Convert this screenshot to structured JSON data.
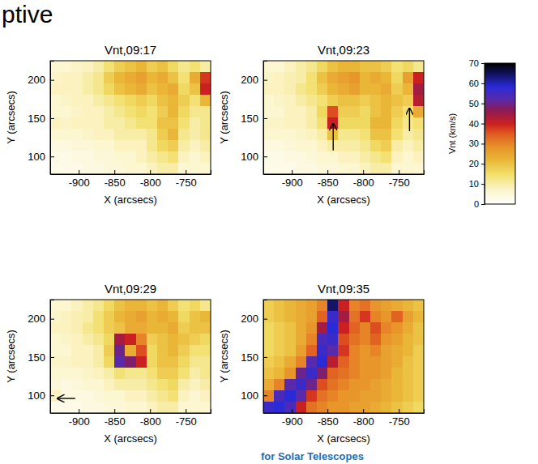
{
  "header": "ptive",
  "footer": "for Solar Telescopes",
  "colorbar": {
    "label": "Vnt (km/s)",
    "range": [
      0,
      70
    ],
    "ticks": [
      0,
      10,
      20,
      30,
      40,
      50,
      60,
      70
    ]
  },
  "chart_data": [
    {
      "type": "heatmap",
      "title": "Vnt,09:17",
      "x_label": "X (arcsecs)",
      "y_label": "Y (arcsecs)",
      "xlim": [
        -940,
        -715
      ],
      "ylim": [
        77,
        225
      ],
      "xticks": [
        -900,
        -850,
        -800,
        -750
      ],
      "yticks": [
        100,
        150,
        200
      ],
      "cells": [
        [
          6,
          6,
          7,
          8,
          10,
          14,
          18,
          20,
          22,
          18,
          20,
          16,
          12,
          14,
          10
        ],
        [
          7,
          8,
          8,
          10,
          12,
          18,
          22,
          24,
          26,
          22,
          24,
          20,
          14,
          24,
          38
        ],
        [
          8,
          8,
          8,
          10,
          12,
          16,
          20,
          22,
          24,
          20,
          22,
          24,
          16,
          20,
          40
        ],
        [
          6,
          7,
          8,
          8,
          10,
          12,
          14,
          16,
          18,
          16,
          20,
          22,
          18,
          14,
          22
        ],
        [
          6,
          6,
          7,
          8,
          8,
          10,
          12,
          14,
          16,
          14,
          18,
          22,
          16,
          12,
          12
        ],
        [
          8,
          7,
          8,
          8,
          8,
          10,
          10,
          12,
          14,
          14,
          20,
          20,
          14,
          10,
          12
        ],
        [
          6,
          6,
          6,
          7,
          8,
          8,
          10,
          10,
          10,
          12,
          18,
          22,
          12,
          10,
          12
        ],
        [
          4,
          4,
          5,
          5,
          6,
          6,
          8,
          8,
          8,
          12,
          16,
          18,
          10,
          8,
          10
        ],
        [
          3,
          3,
          4,
          4,
          5,
          5,
          6,
          6,
          8,
          10,
          12,
          14,
          8,
          6,
          8
        ],
        [
          3,
          3,
          3,
          4,
          4,
          5,
          5,
          6,
          6,
          8,
          10,
          10,
          6,
          6,
          6
        ]
      ]
    },
    {
      "type": "heatmap",
      "title": "Vnt,09:23",
      "x_label": "X (arcsecs)",
      "y_label": "Y (arcsecs)",
      "xlim": [
        -940,
        -715
      ],
      "ylim": [
        77,
        225
      ],
      "xticks": [
        -900,
        -850,
        -800,
        -750
      ],
      "yticks": [
        100,
        150,
        200
      ],
      "cells": [
        [
          6,
          6,
          8,
          10,
          12,
          16,
          20,
          22,
          22,
          20,
          20,
          18,
          14,
          16,
          12
        ],
        [
          7,
          8,
          9,
          10,
          14,
          20,
          24,
          26,
          28,
          22,
          24,
          22,
          16,
          26,
          40
        ],
        [
          8,
          8,
          9,
          12,
          14,
          18,
          22,
          24,
          26,
          22,
          22,
          24,
          18,
          22,
          44
        ],
        [
          6,
          7,
          8,
          10,
          12,
          14,
          18,
          20,
          20,
          18,
          20,
          22,
          20,
          18,
          42
        ],
        [
          6,
          6,
          8,
          8,
          10,
          16,
          36,
          18,
          18,
          16,
          20,
          22,
          18,
          14,
          24
        ],
        [
          7,
          7,
          8,
          8,
          10,
          14,
          40,
          16,
          16,
          16,
          22,
          22,
          16,
          12,
          14
        ],
        [
          6,
          6,
          6,
          7,
          8,
          10,
          20,
          12,
          12,
          14,
          20,
          20,
          14,
          10,
          12
        ],
        [
          4,
          4,
          5,
          6,
          6,
          8,
          10,
          10,
          10,
          12,
          16,
          18,
          10,
          8,
          10
        ],
        [
          3,
          3,
          4,
          4,
          5,
          6,
          6,
          8,
          8,
          10,
          12,
          14,
          8,
          6,
          8
        ],
        [
          3,
          3,
          3,
          4,
          4,
          5,
          5,
          6,
          6,
          8,
          10,
          10,
          6,
          6,
          6
        ]
      ],
      "arrows": [
        [
          -842,
          108,
          -842,
          143
        ],
        [
          -735,
          133,
          -735,
          163
        ]
      ]
    },
    {
      "type": "heatmap",
      "title": "Vnt,09:29",
      "x_label": "X (arcsecs)",
      "y_label": "Y (arcsecs)",
      "xlim": [
        -940,
        -715
      ],
      "ylim": [
        77,
        225
      ],
      "xticks": [
        -900,
        -850,
        -800,
        -750
      ],
      "yticks": [
        100,
        150,
        200
      ],
      "cells": [
        [
          6,
          6,
          8,
          10,
          12,
          16,
          20,
          22,
          22,
          20,
          22,
          18,
          14,
          16,
          12
        ],
        [
          7,
          8,
          9,
          10,
          14,
          18,
          22,
          24,
          26,
          22,
          24,
          22,
          16,
          20,
          22
        ],
        [
          8,
          8,
          9,
          12,
          14,
          18,
          20,
          24,
          24,
          22,
          22,
          24,
          18,
          20,
          20
        ],
        [
          6,
          7,
          8,
          10,
          12,
          16,
          44,
          40,
          30,
          18,
          20,
          22,
          20,
          18,
          16
        ],
        [
          6,
          6,
          8,
          8,
          10,
          18,
          50,
          24,
          36,
          16,
          20,
          22,
          18,
          14,
          14
        ],
        [
          7,
          7,
          8,
          8,
          10,
          16,
          52,
          48,
          40,
          16,
          20,
          20,
          16,
          12,
          12
        ],
        [
          6,
          6,
          6,
          7,
          8,
          10,
          14,
          12,
          12,
          14,
          18,
          18,
          14,
          10,
          12
        ],
        [
          5,
          4,
          5,
          6,
          6,
          8,
          10,
          10,
          10,
          12,
          14,
          16,
          10,
          8,
          10
        ],
        [
          8,
          4,
          4,
          4,
          5,
          6,
          6,
          8,
          8,
          10,
          12,
          14,
          8,
          6,
          8
        ],
        [
          3,
          3,
          3,
          4,
          4,
          5,
          5,
          6,
          6,
          8,
          10,
          10,
          6,
          6,
          6
        ]
      ],
      "arrows": [
        [
          -905,
          96,
          -930,
          96
        ]
      ]
    },
    {
      "type": "heatmap",
      "title": "Vnt,09:35",
      "x_label": "X (arcsecs)",
      "y_label": "Y (arcsecs)",
      "xlim": [
        -940,
        -715
      ],
      "ylim": [
        77,
        225
      ],
      "xticks": [
        -900,
        -850,
        -800,
        -750
      ],
      "yticks": [
        100,
        150,
        200
      ],
      "cells": [
        [
          18,
          20,
          22,
          24,
          26,
          30,
          64,
          40,
          30,
          32,
          28,
          26,
          24,
          22,
          20
        ],
        [
          18,
          20,
          22,
          24,
          26,
          34,
          56,
          44,
          32,
          38,
          30,
          28,
          34,
          26,
          22
        ],
        [
          16,
          18,
          20,
          24,
          28,
          44,
          58,
          40,
          34,
          30,
          36,
          30,
          28,
          24,
          20
        ],
        [
          16,
          18,
          20,
          24,
          30,
          54,
          56,
          36,
          32,
          30,
          34,
          28,
          26,
          22,
          20
        ],
        [
          16,
          18,
          20,
          26,
          34,
          56,
          52,
          38,
          30,
          28,
          30,
          26,
          24,
          22,
          18
        ],
        [
          18,
          20,
          24,
          30,
          52,
          58,
          42,
          34,
          30,
          28,
          28,
          26,
          24,
          20,
          18
        ],
        [
          20,
          22,
          28,
          50,
          56,
          48,
          34,
          32,
          30,
          28,
          28,
          26,
          22,
          20,
          18
        ],
        [
          24,
          30,
          52,
          56,
          50,
          36,
          32,
          30,
          28,
          28,
          26,
          24,
          22,
          20,
          18
        ],
        [
          30,
          54,
          58,
          52,
          38,
          32,
          30,
          28,
          28,
          26,
          26,
          24,
          22,
          20,
          18
        ],
        [
          56,
          58,
          54,
          40,
          32,
          30,
          28,
          28,
          26,
          26,
          24,
          22,
          20,
          18,
          16
        ]
      ]
    }
  ]
}
